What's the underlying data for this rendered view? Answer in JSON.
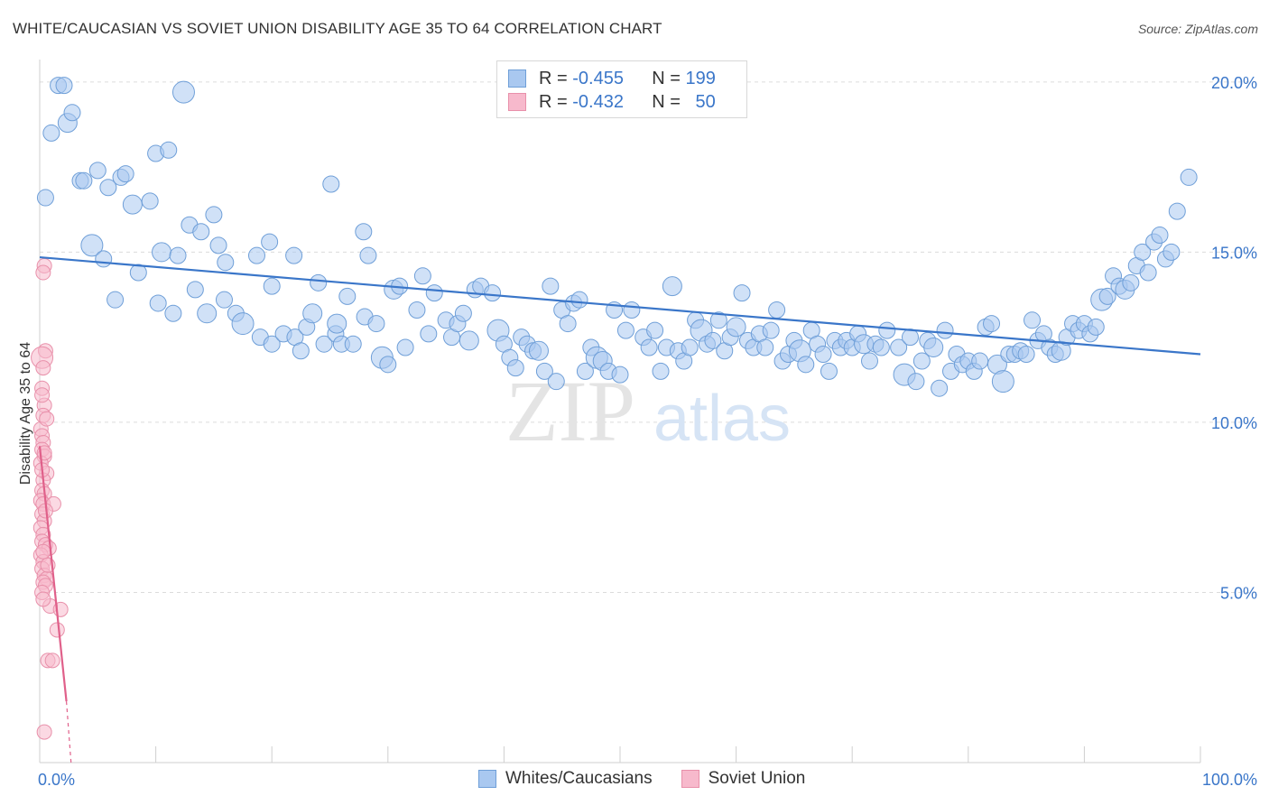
{
  "title": "WHITE/CAUCASIAN VS SOVIET UNION DISABILITY AGE 35 TO 64 CORRELATION CHART",
  "source": "Source: ZipAtlas.com",
  "watermark": {
    "zip": "ZIP",
    "atlas": "atlas"
  },
  "stats": [
    {
      "r_label": "R =",
      "r_value": "-0.455",
      "n_label": "N =",
      "n_value": "199",
      "color": "#a9c8f0",
      "border": "#6f9fd8"
    },
    {
      "r_label": "R =",
      "r_value": "-0.432",
      "n_label": "N =",
      "n_value": "50",
      "color": "#f7b9cc",
      "border": "#e890aa"
    }
  ],
  "legend": [
    {
      "label": "Whites/Caucasians",
      "color": "#a9c8f0",
      "border": "#6f9fd8"
    },
    {
      "label": "Soviet Union",
      "color": "#f7b9cc",
      "border": "#e890aa"
    }
  ],
  "chart_data": {
    "type": "scatter",
    "title": "WHITE/CAUCASIAN VS SOVIET UNION DISABILITY AGE 35 TO 64 CORRELATION CHART",
    "xlabel": "",
    "ylabel": "Disability Age 35 to 64",
    "xlim": [
      0,
      100
    ],
    "ylim": [
      0,
      20.5
    ],
    "x_tick_labels": [
      "0.0%",
      "100.0%"
    ],
    "y_ticks": [
      5,
      10,
      15,
      20
    ],
    "y_tick_labels": [
      "5.0%",
      "10.0%",
      "15.0%",
      "20.0%"
    ],
    "grid": true,
    "legend_position": "bottom-center",
    "series": [
      {
        "name": "Whites/Caucasians",
        "color": "#a9c8f0",
        "stroke": "#6f9fd8",
        "trend": {
          "x": [
            0,
            100
          ],
          "y": [
            14.85,
            12.0
          ],
          "color": "#3a76c9"
        },
        "points": [
          [
            1.6,
            19.9
          ],
          [
            2.1,
            19.9
          ],
          [
            1.0,
            18.5
          ],
          [
            2.4,
            18.8
          ],
          [
            2.8,
            19.1
          ],
          [
            12.4,
            19.7
          ],
          [
            0.5,
            16.6
          ],
          [
            3.5,
            17.1
          ],
          [
            3.8,
            17.1
          ],
          [
            5.0,
            17.4
          ],
          [
            5.9,
            16.9
          ],
          [
            7.0,
            17.2
          ],
          [
            7.4,
            17.3
          ],
          [
            9.5,
            16.5
          ],
          [
            8.0,
            16.4
          ],
          [
            10.0,
            17.9
          ],
          [
            11.1,
            18.0
          ],
          [
            25.1,
            17.0
          ],
          [
            12.9,
            15.8
          ],
          [
            13.9,
            15.6
          ],
          [
            15.0,
            16.1
          ],
          [
            15.4,
            15.2
          ],
          [
            4.5,
            15.2
          ],
          [
            5.5,
            14.8
          ],
          [
            8.5,
            14.4
          ],
          [
            10.5,
            15.0
          ],
          [
            11.9,
            14.9
          ],
          [
            16.0,
            14.7
          ],
          [
            18.7,
            14.9
          ],
          [
            19.8,
            15.3
          ],
          [
            21.9,
            14.9
          ],
          [
            27.9,
            15.6
          ],
          [
            28.3,
            14.9
          ],
          [
            6.5,
            13.6
          ],
          [
            11.5,
            13.2
          ],
          [
            13.4,
            13.9
          ],
          [
            14.4,
            13.2
          ],
          [
            15.9,
            13.6
          ],
          [
            16.9,
            13.2
          ],
          [
            17.5,
            12.9
          ],
          [
            19.0,
            12.5
          ],
          [
            20.0,
            14.0
          ],
          [
            20.0,
            12.3
          ],
          [
            21.0,
            12.6
          ],
          [
            22.0,
            12.5
          ],
          [
            22.5,
            12.1
          ],
          [
            23.0,
            12.8
          ],
          [
            23.5,
            13.2
          ],
          [
            24.0,
            14.1
          ],
          [
            24.5,
            12.3
          ],
          [
            25.5,
            12.6
          ],
          [
            26.0,
            12.3
          ],
          [
            26.5,
            13.7
          ],
          [
            27.0,
            12.3
          ],
          [
            28.0,
            13.1
          ],
          [
            29.0,
            12.9
          ],
          [
            29.5,
            11.9
          ],
          [
            30.0,
            11.7
          ],
          [
            30.5,
            13.9
          ],
          [
            31.0,
            14.0
          ],
          [
            31.5,
            12.2
          ],
          [
            32.5,
            13.3
          ],
          [
            33.0,
            14.3
          ],
          [
            33.5,
            12.6
          ],
          [
            34.0,
            13.8
          ],
          [
            35.0,
            13.0
          ],
          [
            35.5,
            12.5
          ],
          [
            36.0,
            12.9
          ],
          [
            36.5,
            13.2
          ],
          [
            37.0,
            12.4
          ],
          [
            37.5,
            13.9
          ],
          [
            38.0,
            14.0
          ],
          [
            39.0,
            13.8
          ],
          [
            39.5,
            12.7
          ],
          [
            40.0,
            12.3
          ],
          [
            40.5,
            11.9
          ],
          [
            41.0,
            11.6
          ],
          [
            41.5,
            12.5
          ],
          [
            42.0,
            12.3
          ],
          [
            42.5,
            12.1
          ],
          [
            43.0,
            12.1
          ],
          [
            43.5,
            11.5
          ],
          [
            44.0,
            14.0
          ],
          [
            44.5,
            11.2
          ],
          [
            45.0,
            13.3
          ],
          [
            45.5,
            12.9
          ],
          [
            46.0,
            13.5
          ],
          [
            46.5,
            13.6
          ],
          [
            47.0,
            11.5
          ],
          [
            47.5,
            12.2
          ],
          [
            48.0,
            11.9
          ],
          [
            48.5,
            11.8
          ],
          [
            49.0,
            11.5
          ],
          [
            49.5,
            13.3
          ],
          [
            50.0,
            11.4
          ],
          [
            50.5,
            12.7
          ],
          [
            51.0,
            13.3
          ],
          [
            52.0,
            12.5
          ],
          [
            52.5,
            12.2
          ],
          [
            53.0,
            12.7
          ],
          [
            53.5,
            11.5
          ],
          [
            54.0,
            12.2
          ],
          [
            54.5,
            14.0
          ],
          [
            55.0,
            12.1
          ],
          [
            55.5,
            11.8
          ],
          [
            56.0,
            12.2
          ],
          [
            56.5,
            13.0
          ],
          [
            57.0,
            12.7
          ],
          [
            57.5,
            12.3
          ],
          [
            58.0,
            12.4
          ],
          [
            58.5,
            13.0
          ],
          [
            59.0,
            12.1
          ],
          [
            59.5,
            12.5
          ],
          [
            60.0,
            12.8
          ],
          [
            60.5,
            13.8
          ],
          [
            61.0,
            12.4
          ],
          [
            61.5,
            12.2
          ],
          [
            62.0,
            12.6
          ],
          [
            62.5,
            12.2
          ],
          [
            63.0,
            12.7
          ],
          [
            63.5,
            13.3
          ],
          [
            64.0,
            11.8
          ],
          [
            64.5,
            12.0
          ],
          [
            65.0,
            12.4
          ],
          [
            65.5,
            12.1
          ],
          [
            66.0,
            11.7
          ],
          [
            66.5,
            12.7
          ],
          [
            67.0,
            12.3
          ],
          [
            67.5,
            12.0
          ],
          [
            68.0,
            11.5
          ],
          [
            68.5,
            12.4
          ],
          [
            69.0,
            12.2
          ],
          [
            69.5,
            12.4
          ],
          [
            70.0,
            12.2
          ],
          [
            70.5,
            12.6
          ],
          [
            71.0,
            12.3
          ],
          [
            71.5,
            11.8
          ],
          [
            72.0,
            12.3
          ],
          [
            72.5,
            12.2
          ],
          [
            73.0,
            12.7
          ],
          [
            74.0,
            12.2
          ],
          [
            74.5,
            11.4
          ],
          [
            75.0,
            12.5
          ],
          [
            75.5,
            11.2
          ],
          [
            76.0,
            11.8
          ],
          [
            76.5,
            12.4
          ],
          [
            77.0,
            12.2
          ],
          [
            77.5,
            11.0
          ],
          [
            78.0,
            12.7
          ],
          [
            78.5,
            11.5
          ],
          [
            79.0,
            12.0
          ],
          [
            79.5,
            11.7
          ],
          [
            80.0,
            11.8
          ],
          [
            80.5,
            11.5
          ],
          [
            81.0,
            11.8
          ],
          [
            81.5,
            12.8
          ],
          [
            82.0,
            12.9
          ],
          [
            82.5,
            11.7
          ],
          [
            83.0,
            11.2
          ],
          [
            83.5,
            12.0
          ],
          [
            84.0,
            12.0
          ],
          [
            84.5,
            12.1
          ],
          [
            85.0,
            12.0
          ],
          [
            85.5,
            13.0
          ],
          [
            86.0,
            12.4
          ],
          [
            86.5,
            12.6
          ],
          [
            87.0,
            12.2
          ],
          [
            87.5,
            12.0
          ],
          [
            88.0,
            12.1
          ],
          [
            88.5,
            12.5
          ],
          [
            89.0,
            12.9
          ],
          [
            89.5,
            12.7
          ],
          [
            90.0,
            12.9
          ],
          [
            90.5,
            12.6
          ],
          [
            91.0,
            12.8
          ],
          [
            91.5,
            13.6
          ],
          [
            92.0,
            13.7
          ],
          [
            92.5,
            14.3
          ],
          [
            93.0,
            14.0
          ],
          [
            93.5,
            13.9
          ],
          [
            94.0,
            14.1
          ],
          [
            94.5,
            14.6
          ],
          [
            95.0,
            15.0
          ],
          [
            95.5,
            14.4
          ],
          [
            96.0,
            15.3
          ],
          [
            96.5,
            15.5
          ],
          [
            97.0,
            14.8
          ],
          [
            97.5,
            15.0
          ],
          [
            98.0,
            16.2
          ],
          [
            99.0,
            17.2
          ],
          [
            25.6,
            12.9
          ],
          [
            10.2,
            13.5
          ]
        ]
      },
      {
        "name": "Soviet Union",
        "color": "#f7b9cc",
        "stroke": "#e890aa",
        "trend": {
          "x": [
            0,
            2.3
          ],
          "y": [
            9.3,
            1.8
          ],
          "dash_to": [
            2.7,
            0
          ],
          "color": "#e0608a"
        },
        "points": [
          [
            0.4,
            14.6
          ],
          [
            0.3,
            14.4
          ],
          [
            0.5,
            12.1
          ],
          [
            0.2,
            11.9
          ],
          [
            0.3,
            11.6
          ],
          [
            0.2,
            11.0
          ],
          [
            0.4,
            10.5
          ],
          [
            0.3,
            10.2
          ],
          [
            0.1,
            9.8
          ],
          [
            0.2,
            9.6
          ],
          [
            0.3,
            9.4
          ],
          [
            0.2,
            9.2
          ],
          [
            0.4,
            9.0
          ],
          [
            0.1,
            8.8
          ],
          [
            0.6,
            8.5
          ],
          [
            0.3,
            8.3
          ],
          [
            0.2,
            8.0
          ],
          [
            0.4,
            7.9
          ],
          [
            0.1,
            7.7
          ],
          [
            0.3,
            7.6
          ],
          [
            1.2,
            7.6
          ],
          [
            0.2,
            7.3
          ],
          [
            0.4,
            7.1
          ],
          [
            0.1,
            6.9
          ],
          [
            0.3,
            6.7
          ],
          [
            0.2,
            6.5
          ],
          [
            0.5,
            6.4
          ],
          [
            0.8,
            6.3
          ],
          [
            0.1,
            6.1
          ],
          [
            0.3,
            5.9
          ],
          [
            0.2,
            5.7
          ],
          [
            0.4,
            5.5
          ],
          [
            0.6,
            5.4
          ],
          [
            0.3,
            5.3
          ],
          [
            0.5,
            5.2
          ],
          [
            0.2,
            5.0
          ],
          [
            0.9,
            4.6
          ],
          [
            1.8,
            4.5
          ],
          [
            1.5,
            3.9
          ],
          [
            0.7,
            3.0
          ],
          [
            1.1,
            3.0
          ],
          [
            0.4,
            0.9
          ],
          [
            0.2,
            10.8
          ],
          [
            0.5,
            7.4
          ],
          [
            0.3,
            6.2
          ],
          [
            0.7,
            5.8
          ],
          [
            0.2,
            8.6
          ],
          [
            0.4,
            9.1
          ],
          [
            0.3,
            4.8
          ],
          [
            0.6,
            10.1
          ]
        ]
      }
    ]
  }
}
